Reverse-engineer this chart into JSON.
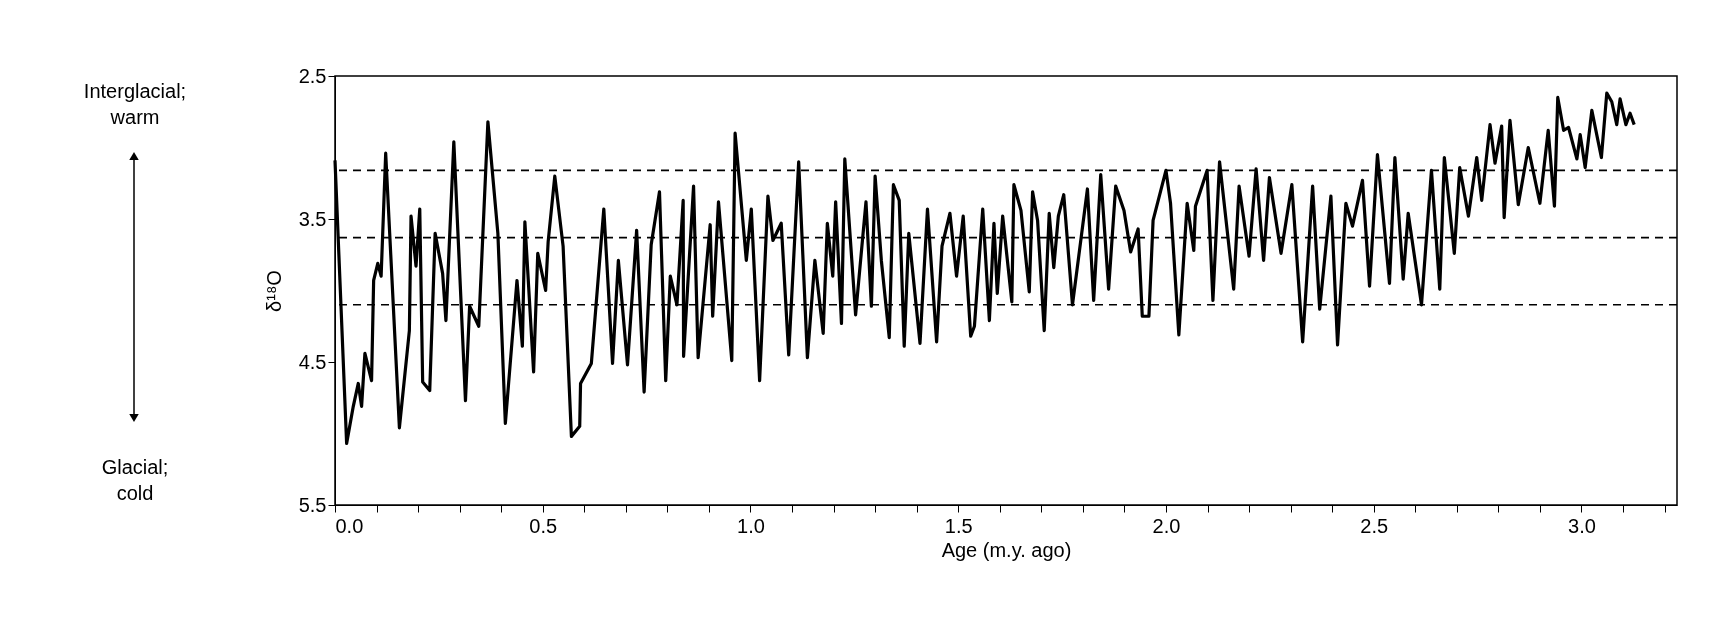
{
  "chart_data": {
    "type": "line",
    "xlabel": "Age (m.y. ago)",
    "ylabel": "δ¹⁸O",
    "annotations": [
      "Interglacial;\nwarm",
      "Glacial;\ncold"
    ],
    "xlim": [
      0,
      3.23
    ],
    "ylim": [
      5.5,
      2.5
    ],
    "xticks": [
      {
        "value": 0,
        "label": "0.0"
      },
      {
        "value": 0.1,
        "label": null
      },
      {
        "value": 0.2,
        "label": null
      },
      {
        "value": 0.3,
        "label": null
      },
      {
        "value": 0.4,
        "label": null
      },
      0.5,
      {
        "value": 0.6,
        "label": null
      },
      {
        "value": 0.7,
        "label": null
      },
      {
        "value": 0.8,
        "label": null
      },
      {
        "value": 0.9,
        "label": null
      },
      {
        "value": 1,
        "label": "1.0"
      },
      {
        "value": 1.1,
        "label": null
      },
      {
        "value": 1.2,
        "label": null
      },
      {
        "value": 1.3,
        "label": null
      },
      {
        "value": 1.4,
        "label": null
      },
      1.5,
      {
        "value": 1.6,
        "label": null
      },
      {
        "value": 1.7,
        "label": null
      },
      {
        "value": 1.8,
        "label": null
      },
      {
        "value": 1.9,
        "label": null
      },
      {
        "value": 2,
        "label": "2.0"
      },
      {
        "value": 2.1,
        "label": null
      },
      {
        "value": 2.2,
        "label": null
      },
      {
        "value": 2.3,
        "label": null
      },
      {
        "value": 2.4,
        "label": null
      },
      2.5,
      {
        "value": 2.6,
        "label": null
      },
      {
        "value": 2.7,
        "label": null
      },
      {
        "value": 2.8,
        "label": null
      },
      {
        "value": 2.9,
        "label": null
      },
      {
        "value": 3,
        "label": "3.0"
      },
      {
        "value": 3.1,
        "label": null
      },
      {
        "value": 3.2,
        "label": null
      }
    ],
    "yticks": [
      2.5,
      3.5,
      4.5,
      5.5
    ],
    "grid": false,
    "marker": "none",
    "line_style": "solid",
    "ref_lines": [
      {
        "axis": "y",
        "value": 3.16,
        "line_style": "dashed"
      },
      {
        "axis": "y",
        "value": 3.63,
        "line_style": "dashed"
      },
      {
        "axis": "y",
        "value": 4.1,
        "line_style": "dashed"
      }
    ],
    "series": [
      {
        "color": "#000000",
        "x": [
          0,
          0.028,
          0.044,
          0.056,
          0.064,
          0.072,
          0.088,
          0.093,
          0.103,
          0.111,
          0.122,
          0.155,
          0.179,
          0.183,
          0.195,
          0.204,
          0.211,
          0.228,
          0.241,
          0.259,
          0.267,
          0.286,
          0.314,
          0.324,
          0.346,
          0.368,
          0.392,
          0.41,
          0.438,
          0.451,
          0.457,
          0.478,
          0.488,
          0.507,
          0.513,
          0.529,
          0.549,
          0.569,
          0.589,
          0.591,
          0.617,
          0.647,
          0.668,
          0.682,
          0.704,
          0.726,
          0.744,
          0.761,
          0.781,
          0.796,
          0.807,
          0.823,
          0.838,
          0.839,
          0.863,
          0.874,
          0.903,
          0.909,
          0.923,
          0.955,
          0.963,
          0.99,
          1.002,
          1.022,
          1.042,
          1.054,
          1.074,
          1.092,
          1.116,
          1.137,
          1.155,
          1.175,
          1.185,
          1.198,
          1.205,
          1.219,
          1.227,
          1.253,
          1.278,
          1.291,
          1.3,
          1.315,
          1.334,
          1.344,
          1.358,
          1.37,
          1.381,
          1.408,
          1.426,
          1.448,
          1.461,
          1.48,
          1.496,
          1.512,
          1.53,
          1.539,
          1.559,
          1.575,
          1.586,
          1.594,
          1.607,
          1.629,
          1.634,
          1.651,
          1.671,
          1.679,
          1.691,
          1.707,
          1.719,
          1.73,
          1.741,
          1.754,
          1.775,
          1.811,
          1.826,
          1.843,
          1.862,
          1.879,
          1.899,
          1.915,
          1.933,
          1.943,
          1.959,
          1.969,
          2.0,
          2.011,
          2.031,
          2.051,
          2.067,
          2.071,
          2.099,
          2.113,
          2.129,
          2.163,
          2.176,
          2.2,
          2.217,
          2.235,
          2.249,
          2.277,
          2.303,
          2.329,
          2.353,
          2.37,
          2.397,
          2.413,
          2.433,
          2.449,
          2.473,
          2.49,
          2.509,
          2.538,
          2.551,
          2.571,
          2.583,
          2.615,
          2.639,
          2.659,
          2.67,
          2.694,
          2.707,
          2.728,
          2.748,
          2.76,
          2.78,
          2.792,
          2.808,
          2.814,
          2.828,
          2.848,
          2.872,
          2.9,
          2.92,
          2.935,
          2.943,
          2.957,
          2.969,
          2.989,
          2.997,
          3.009,
          3.025,
          3.048,
          3.061,
          3.073,
          3.085,
          3.093,
          3.107,
          3.117,
          3.127
        ],
        "values": [
          3.09,
          5.07,
          4.81,
          4.65,
          4.81,
          4.44,
          4.63,
          3.93,
          3.81,
          3.9,
          3.04,
          4.96,
          4.28,
          3.48,
          3.83,
          3.43,
          4.64,
          4.7,
          3.6,
          3.88,
          4.21,
          2.96,
          4.77,
          4.11,
          4.25,
          2.82,
          3.6,
          4.93,
          3.93,
          4.39,
          3.52,
          4.57,
          3.74,
          4.0,
          3.66,
          3.2,
          3.69,
          5.02,
          4.95,
          4.65,
          4.51,
          3.43,
          4.51,
          3.79,
          4.52,
          3.58,
          4.71,
          3.68,
          3.31,
          4.63,
          3.9,
          4.1,
          3.37,
          4.46,
          3.27,
          4.47,
          3.54,
          4.18,
          3.38,
          4.49,
          2.9,
          3.79,
          3.43,
          4.63,
          3.34,
          3.65,
          3.53,
          4.45,
          3.1,
          4.47,
          3.79,
          4.3,
          3.53,
          3.9,
          3.38,
          4.23,
          3.08,
          4.17,
          3.38,
          4.11,
          3.2,
          3.79,
          4.33,
          3.26,
          3.37,
          4.39,
          3.6,
          4.37,
          3.43,
          4.36,
          3.69,
          3.46,
          3.9,
          3.48,
          4.32,
          4.25,
          3.43,
          4.21,
          3.53,
          4.02,
          3.48,
          4.08,
          3.26,
          3.44,
          4.01,
          3.31,
          3.51,
          4.28,
          3.46,
          3.84,
          3.48,
          3.33,
          4.1,
          3.29,
          4.07,
          3.19,
          3.99,
          3.27,
          3.44,
          3.73,
          3.57,
          4.18,
          4.18,
          3.51,
          3.16,
          3.39,
          4.31,
          3.39,
          3.72,
          3.41,
          3.16,
          4.07,
          3.1,
          3.99,
          3.27,
          3.76,
          3.15,
          3.79,
          3.21,
          3.74,
          3.26,
          4.36,
          3.27,
          4.13,
          3.34,
          4.38,
          3.39,
          3.55,
          3.23,
          3.97,
          3.05,
          3.95,
          3.07,
          3.92,
          3.46,
          4.1,
          3.16,
          3.99,
          3.07,
          3.74,
          3.14,
          3.48,
          3.07,
          3.37,
          2.84,
          3.11,
          2.85,
          3.49,
          2.81,
          3.4,
          3.0,
          3.39,
          2.88,
          3.41,
          2.65,
          2.88,
          2.86,
          3.08,
          2.91,
          3.14,
          2.74,
          3.07,
          2.62,
          2.68,
          2.84,
          2.66,
          2.84,
          2.76,
          2.84
        ]
      }
    ]
  }
}
